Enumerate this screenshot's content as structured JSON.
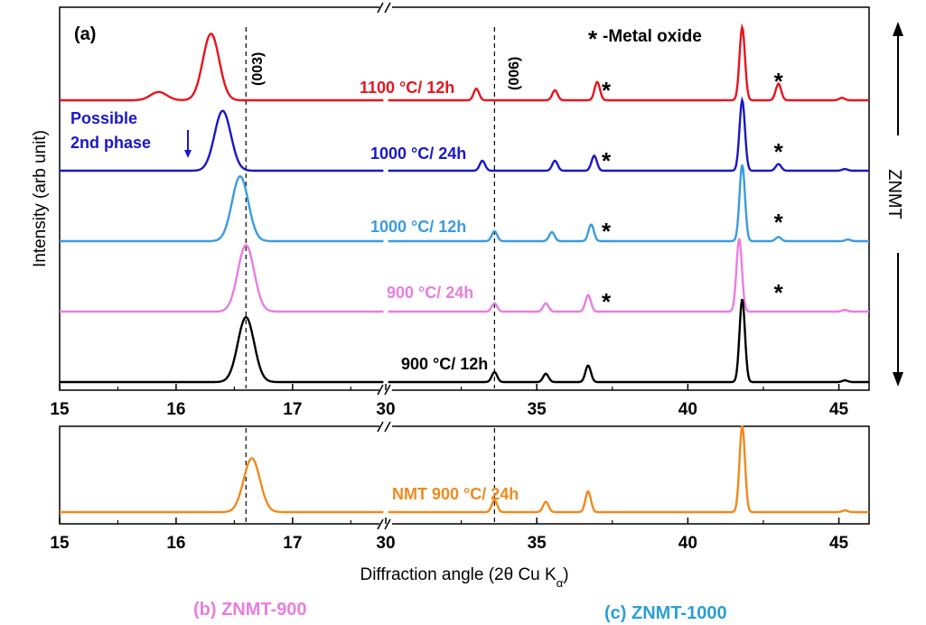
{
  "panel_label": "(a)",
  "legend_note": "-Metal oxide",
  "legend_star": "*",
  "peak_labels": [
    "(003)",
    "(006)"
  ],
  "y_label": "Intensity (arb unit)",
  "side_label": "ZNMT",
  "annotation": "Possible\n2nd phase",
  "x_label_main": "Diffraction angle (2θ Cu K",
  "x_label_sub": "α",
  "x_label_close": ")",
  "captions": {
    "b": "(b) ZNMT-900",
    "c": "(c) ZNMT-1000"
  },
  "colors": {
    "red": "#e8141e",
    "blue": "#1a17c8",
    "lightblue": "#3a9be0",
    "pink": "#e87ee0",
    "black": "#000000",
    "orange": "#f08a1e",
    "caption_b": "#e87ee0",
    "caption_c": "#2a9fd6"
  },
  "chart_data": [
    {
      "type": "line",
      "xlabel": "",
      "ylabel": "Intensity (arb unit)",
      "xaxis": {
        "broken": true,
        "segment1": {
          "range": [
            15,
            17.8
          ],
          "ticks": [
            15,
            16,
            17
          ]
        },
        "segment2": {
          "range": [
            30,
            46
          ],
          "ticks": [
            30,
            35,
            40,
            45
          ]
        }
      },
      "reference_lines": [
        16.6,
        33.6
      ],
      "series": [
        {
          "name": "1100 °C/ 12h",
          "color": "#e8141e",
          "offset": 4,
          "peaks": [
            [
              15.85,
              0.1
            ],
            [
              16.3,
              0.8
            ],
            [
              33.0,
              0.14
            ],
            [
              35.6,
              0.12
            ],
            [
              37.0,
              0.22
            ],
            [
              41.8,
              0.88
            ],
            [
              43.0,
              0.2
            ],
            [
              45.1,
              0.03
            ]
          ],
          "stars": [
            37.0,
            43.0
          ]
        },
        {
          "name": "1000 °C/ 24h",
          "color": "#1a17c8",
          "offset": 3,
          "peaks": [
            [
              16.4,
              0.72
            ],
            [
              33.2,
              0.12
            ],
            [
              35.6,
              0.12
            ],
            [
              36.9,
              0.18
            ],
            [
              41.8,
              0.85
            ],
            [
              43.0,
              0.08
            ],
            [
              45.2,
              0.02
            ]
          ],
          "stars": [
            37.0,
            43.0
          ]
        },
        {
          "name": "1000 °C/ 12h",
          "color": "#3a9be0",
          "offset": 2,
          "peaks": [
            [
              16.55,
              0.78
            ],
            [
              33.6,
              0.12
            ],
            [
              35.5,
              0.11
            ],
            [
              36.8,
              0.2
            ],
            [
              41.8,
              0.92
            ],
            [
              43.0,
              0.05
            ],
            [
              45.3,
              0.02
            ]
          ],
          "stars": [
            37.0,
            43.0
          ]
        },
        {
          "name": "900 °C/ 24h",
          "color": "#e87ee0",
          "offset": 1,
          "peaks": [
            [
              16.6,
              0.8
            ],
            [
              33.6,
              0.1
            ],
            [
              35.3,
              0.1
            ],
            [
              36.7,
              0.2
            ],
            [
              41.7,
              0.88
            ],
            [
              45.2,
              0.02
            ]
          ],
          "stars": [
            37.0,
            43.0
          ]
        },
        {
          "name": "900 °C/ 12h",
          "color": "#000000",
          "offset": 0,
          "peaks": [
            [
              16.6,
              0.78
            ],
            [
              33.6,
              0.12
            ],
            [
              35.3,
              0.1
            ],
            [
              36.7,
              0.2
            ],
            [
              41.8,
              1.0
            ],
            [
              45.2,
              0.02
            ]
          ],
          "stars": []
        }
      ]
    },
    {
      "type": "line",
      "xlabel": "Diffraction angle (2θ Cu Kα)",
      "ylabel": "",
      "xaxis": {
        "broken": true,
        "segment1": {
          "range": [
            15,
            17.8
          ],
          "ticks": [
            15,
            16,
            17
          ]
        },
        "segment2": {
          "range": [
            30,
            46
          ],
          "ticks": [
            30,
            35,
            40,
            45
          ]
        }
      },
      "reference_lines": [
        16.6,
        33.6
      ],
      "series": [
        {
          "name": "NMT 900 °C/ 24h",
          "color": "#f08a1e",
          "offset": 0,
          "peaks": [
            [
              16.65,
              0.62
            ],
            [
              33.6,
              0.14
            ],
            [
              35.3,
              0.12
            ],
            [
              36.7,
              0.24
            ],
            [
              41.8,
              1.0
            ],
            [
              45.2,
              0.02
            ]
          ],
          "stars": []
        }
      ]
    }
  ]
}
